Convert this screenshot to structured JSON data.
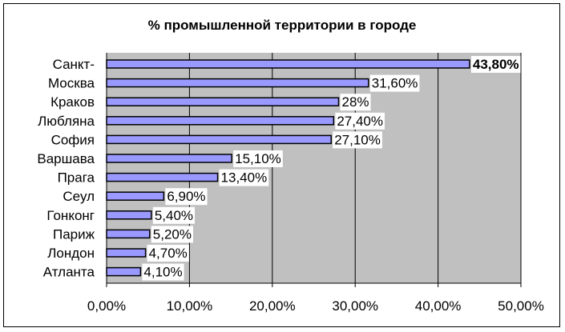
{
  "colors": {
    "plot_background": "#c0c0c0",
    "bar_fill": "#9999ff",
    "bar_stroke": "#000000",
    "gridline": "#000000",
    "label_background": "#ffffff"
  },
  "chart_data": {
    "type": "bar",
    "orientation": "horizontal",
    "title": "% промышленной территории в городе",
    "xlabel": "",
    "ylabel": "",
    "categories": [
      "Санкт-",
      "Москва",
      "Краков",
      "Любляна",
      "София",
      "Варшава",
      "Прага",
      "Сеул",
      "Гонконг",
      "Париж",
      "Лондон",
      "Атланта"
    ],
    "values": [
      43.8,
      31.6,
      28,
      27.4,
      27.1,
      15.1,
      13.4,
      6.9,
      5.4,
      5.2,
      4.7,
      4.1
    ],
    "data_labels": [
      "43,80%",
      "31,60%",
      "28%",
      "27,40%",
      "27,10%",
      "15,10%",
      "13,40%",
      "6,90%",
      "5,40%",
      "5,20%",
      "4,70%",
      "4,10%"
    ],
    "bold_labels": [
      true,
      false,
      false,
      false,
      false,
      false,
      false,
      false,
      false,
      false,
      false,
      false
    ],
    "xlim": [
      0,
      50
    ],
    "xticks": [
      0,
      10,
      20,
      30,
      40,
      50
    ],
    "xtick_labels": [
      "0,00%",
      "10,00%",
      "20,00%",
      "30,00%",
      "40,00%",
      "50,00%"
    ],
    "grid": "vertical",
    "legend": "none"
  }
}
